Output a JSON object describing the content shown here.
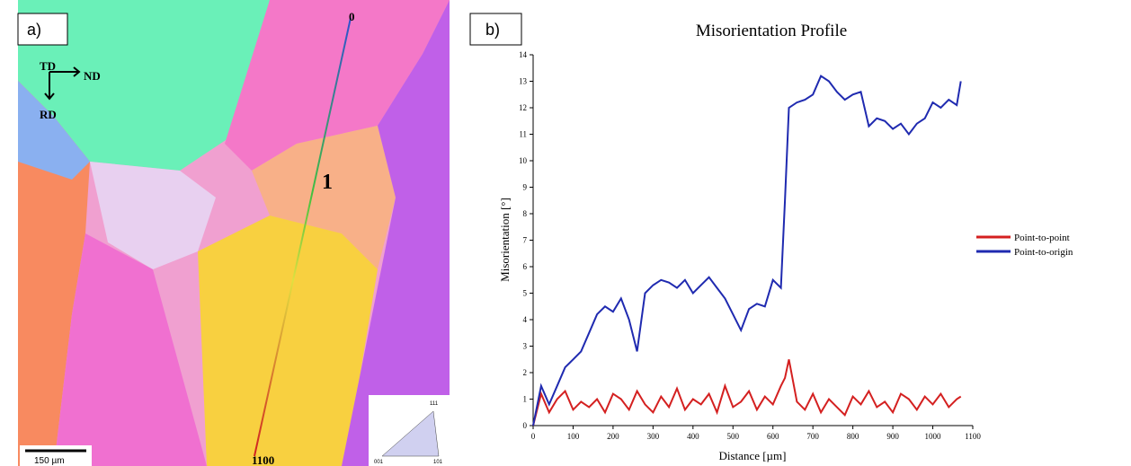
{
  "panels": {
    "a": "a)",
    "b": "b)"
  },
  "map": {
    "axes": {
      "td": "TD",
      "nd": "ND",
      "rd": "RD"
    },
    "line_start": "0",
    "line_end": "1100",
    "grain": "1",
    "scale_bar": "150 µm",
    "ipf": {
      "top": "111",
      "left": "001",
      "right": "101"
    }
  },
  "chart_data": {
    "type": "line",
    "title": "Misorientation Profile",
    "x_label": "Distance [µm]",
    "y_label": "Misorientation [°]",
    "x": [
      0,
      20,
      40,
      60,
      80,
      100,
      120,
      140,
      160,
      180,
      200,
      220,
      240,
      260,
      280,
      300,
      320,
      340,
      360,
      380,
      400,
      420,
      440,
      460,
      480,
      500,
      520,
      540,
      560,
      580,
      600,
      620,
      630,
      640,
      660,
      680,
      700,
      720,
      740,
      760,
      780,
      800,
      820,
      840,
      860,
      880,
      900,
      920,
      940,
      960,
      980,
      1000,
      1020,
      1040,
      1060,
      1070
    ],
    "series": [
      {
        "name": "Point-to-point",
        "color": "#d42020",
        "values": [
          0,
          1.2,
          0.5,
          1.0,
          1.3,
          0.6,
          0.9,
          0.7,
          1.0,
          0.5,
          1.2,
          1.0,
          0.6,
          1.3,
          0.8,
          0.5,
          1.1,
          0.7,
          1.4,
          0.6,
          1.0,
          0.8,
          1.2,
          0.5,
          1.5,
          0.7,
          0.9,
          1.3,
          0.6,
          1.1,
          0.8,
          1.5,
          1.8,
          2.5,
          0.9,
          0.6,
          1.2,
          0.5,
          1.0,
          0.7,
          0.4,
          1.1,
          0.8,
          1.3,
          0.7,
          0.9,
          0.5,
          1.2,
          1.0,
          0.6,
          1.1,
          0.8,
          1.2,
          0.7,
          1.0,
          1.1
        ]
      },
      {
        "name": "Point-to-origin",
        "color": "#1f2ab0",
        "values": [
          0,
          1.5,
          0.8,
          1.5,
          2.2,
          2.5,
          2.8,
          3.5,
          4.2,
          4.5,
          4.3,
          4.8,
          4.0,
          2.8,
          5.0,
          5.3,
          5.5,
          5.4,
          5.2,
          5.5,
          5.0,
          5.3,
          5.6,
          5.2,
          4.8,
          4.2,
          3.6,
          4.4,
          4.6,
          4.5,
          5.5,
          5.2,
          8.5,
          12.0,
          12.2,
          12.3,
          12.5,
          13.2,
          13.0,
          12.6,
          12.3,
          12.5,
          12.6,
          11.3,
          11.6,
          11.5,
          11.2,
          11.4,
          11.0,
          11.4,
          11.6,
          12.2,
          12.0,
          12.3,
          12.1,
          13.0
        ]
      }
    ],
    "xlim": [
      0,
      1100
    ],
    "xticks": [
      0,
      100,
      200,
      300,
      400,
      500,
      600,
      700,
      800,
      900,
      1000,
      1100
    ],
    "ylim": [
      0,
      14
    ],
    "yticks": [
      0,
      1,
      2,
      3,
      4,
      5,
      6,
      7,
      8,
      9,
      10,
      11,
      12,
      13,
      14
    ],
    "grid": false,
    "legend": "right"
  }
}
